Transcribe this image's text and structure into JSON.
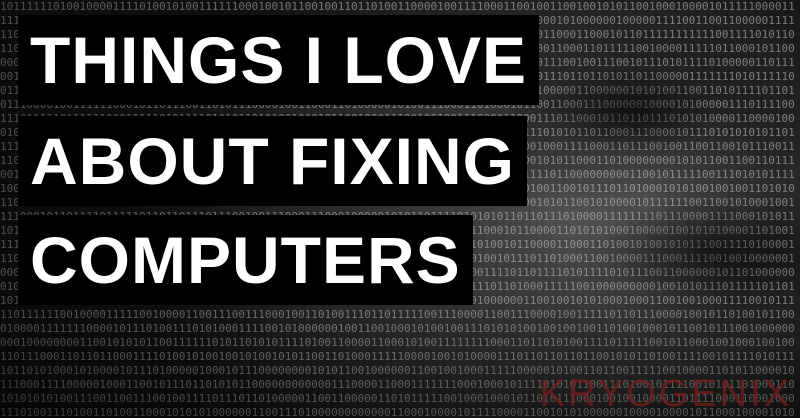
{
  "title": {
    "line1": "THINGS I LOVE",
    "line2": "ABOUT FIXING",
    "line3": "COMPUTERS"
  },
  "watermark": "KRYOGENIX",
  "colors": {
    "text": "#ffffff",
    "text_box": "#000000",
    "watermark": "#782020"
  }
}
